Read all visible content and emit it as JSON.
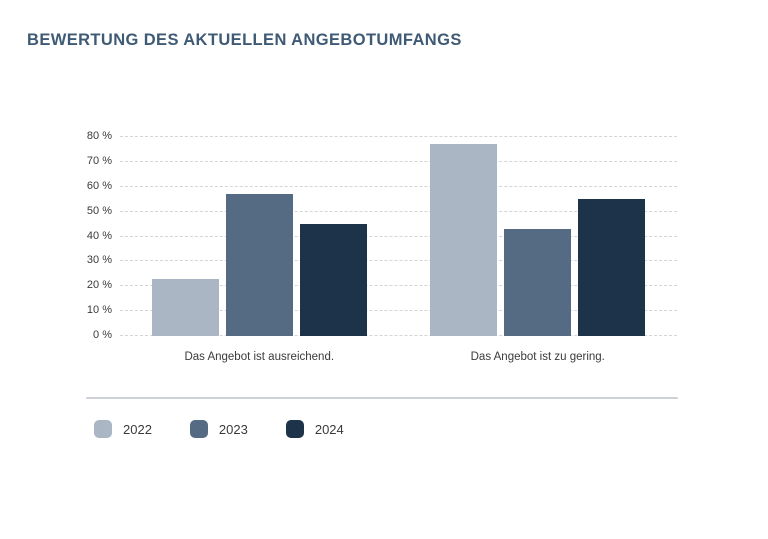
{
  "colors": {
    "title": "#3e5a74",
    "grid": "#d2d5da",
    "divider": "#cdd1d6",
    "axis_text": "#3b3b3b"
  },
  "chart_data": {
    "type": "bar",
    "title": "BEWERTUNG DES AKTUELLEN ANGEBOTUMFANGS",
    "categories": [
      "Das Angebot ist ausreichend.",
      "Das Angebot ist zu gering."
    ],
    "series": [
      {
        "name": "2022",
        "color": "#aab6c3",
        "values": [
          23,
          77
        ]
      },
      {
        "name": "2023",
        "color": "#556b83",
        "values": [
          57,
          43
        ]
      },
      {
        "name": "2024",
        "color": "#1d3349",
        "values": [
          45,
          55
        ]
      }
    ],
    "y_ticks": [
      "0 %",
      "10 %",
      "20 %",
      "30 %",
      "40 %",
      "50 %",
      "60 %",
      "70 %",
      "80 %"
    ],
    "ylim": [
      0,
      80
    ],
    "xlabel": "",
    "ylabel": "",
    "grid": "horizontal-dashed",
    "legend_position": "bottom-left"
  }
}
